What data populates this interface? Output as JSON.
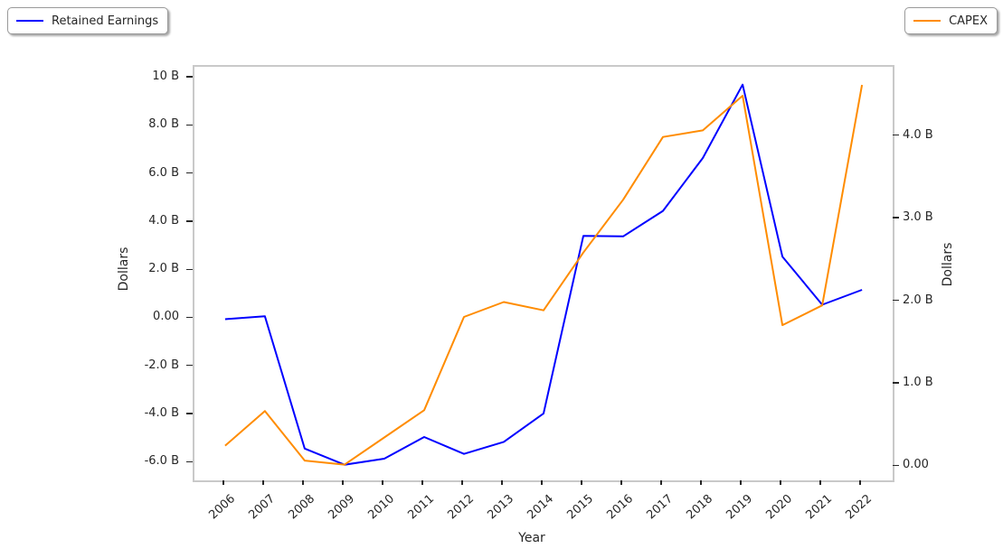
{
  "chart_data": {
    "type": "line",
    "title": "",
    "xlabel": "Year",
    "x": [
      2006,
      2007,
      2008,
      2009,
      2010,
      2011,
      2012,
      2013,
      2014,
      2015,
      2016,
      2017,
      2018,
      2019,
      2020,
      2021,
      2022
    ],
    "x_labels": [
      "2006",
      "2007",
      "2008",
      "2009",
      "2010",
      "2011",
      "2012",
      "2013",
      "2014",
      "2015",
      "2016",
      "2017",
      "2018",
      "2019",
      "2020",
      "2021",
      "2022"
    ],
    "x_range": [
      2005.23,
      2022.77
    ],
    "grid": false,
    "left_axis": {
      "label": "Dollars",
      "ticks": [
        10,
        8,
        6,
        4,
        2,
        0,
        -2,
        -4,
        -6
      ],
      "labels": [
        "10 B",
        "8.0 B",
        "6.0 B",
        "4.0 B",
        "2.0 B",
        "0.00",
        "-2.0 B",
        "-4.0 B",
        "-6.0 B"
      ],
      "range": [
        -6.7,
        10.49
      ]
    },
    "right_axis": {
      "label": "Dollars",
      "ticks": [
        4,
        3,
        2,
        1,
        0
      ],
      "labels": [
        "4.0 B",
        "3.0 B",
        "2.0 B",
        "1.0 B",
        "0.00"
      ],
      "range": [
        -0.16,
        4.85
      ]
    },
    "series": [
      {
        "name": "Retained Earnings",
        "axis": "left",
        "color": "#0000ff",
        "legend_position": "top-left",
        "values": [
          0.0,
          0.12,
          -5.38,
          -6.05,
          -5.8,
          -4.9,
          -5.6,
          -5.1,
          -3.92,
          3.46,
          3.44,
          4.5,
          6.7,
          9.75,
          2.6,
          0.6,
          1.22
        ]
      },
      {
        "name": "CAPEX",
        "axis": "right",
        "color": "#ff8c00",
        "legend_position": "top-right",
        "values": [
          0.26,
          0.68,
          0.08,
          0.03,
          0.36,
          0.69,
          1.82,
          2.0,
          1.9,
          2.6,
          3.24,
          4.0,
          4.08,
          4.5,
          1.72,
          1.96,
          4.63
        ]
      }
    ]
  }
}
